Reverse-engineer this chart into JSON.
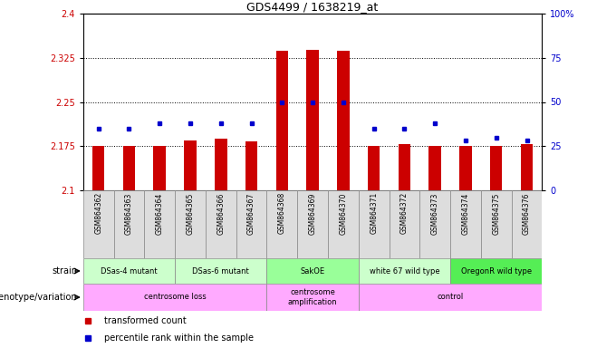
{
  "title": "GDS4499 / 1638219_at",
  "samples": [
    "GSM864362",
    "GSM864363",
    "GSM864364",
    "GSM864365",
    "GSM864366",
    "GSM864367",
    "GSM864368",
    "GSM864369",
    "GSM864370",
    "GSM864371",
    "GSM864372",
    "GSM864373",
    "GSM864374",
    "GSM864375",
    "GSM864376"
  ],
  "bar_values": [
    2.175,
    2.175,
    2.175,
    2.185,
    2.188,
    2.183,
    2.337,
    2.338,
    2.337,
    2.175,
    2.178,
    2.175,
    2.175,
    2.175,
    2.178
  ],
  "dot_values": [
    35,
    35,
    38,
    38,
    38,
    38,
    50,
    50,
    50,
    35,
    35,
    38,
    28,
    30,
    28
  ],
  "ylim_left": [
    2.1,
    2.4
  ],
  "ylim_right": [
    0,
    100
  ],
  "yticks_left": [
    2.1,
    2.175,
    2.25,
    2.325,
    2.4
  ],
  "yticks_left_labels": [
    "2.1",
    "2.175",
    "2.25",
    "2.325",
    "2.4"
  ],
  "yticks_right": [
    0,
    25,
    50,
    75,
    100
  ],
  "yticks_right_labels": [
    "0",
    "25",
    "50",
    "75",
    "100%"
  ],
  "hlines": [
    2.175,
    2.25,
    2.325
  ],
  "bar_color": "#cc0000",
  "dot_color": "#0000cc",
  "bar_bottom": 2.1,
  "strain_groups": [
    {
      "text": "DSas-4 mutant",
      "start": 0,
      "end": 2,
      "color": "#ccffcc"
    },
    {
      "text": "DSas-6 mutant",
      "start": 3,
      "end": 5,
      "color": "#ccffcc"
    },
    {
      "text": "SakOE",
      "start": 6,
      "end": 8,
      "color": "#99ff99"
    },
    {
      "text": "white 67 wild type",
      "start": 9,
      "end": 11,
      "color": "#ccffcc"
    },
    {
      "text": "OregonR wild type",
      "start": 12,
      "end": 14,
      "color": "#55ee55"
    }
  ],
  "geno_groups": [
    {
      "text": "centrosome loss",
      "start": 0,
      "end": 5,
      "color": "#ffaaff"
    },
    {
      "text": "centrosome\namplification",
      "start": 6,
      "end": 8,
      "color": "#ffaaff"
    },
    {
      "text": "control",
      "start": 9,
      "end": 14,
      "color": "#ffaaff"
    }
  ],
  "legend_items": [
    {
      "color": "#cc0000",
      "label": "transformed count"
    },
    {
      "color": "#0000cc",
      "label": "percentile rank within the sample"
    }
  ],
  "strain_row_label": "strain",
  "genotype_row_label": "genotype/variation",
  "tick_label_color_left": "#cc0000",
  "tick_label_color_right": "#0000cc",
  "sample_cell_color": "#dddddd"
}
